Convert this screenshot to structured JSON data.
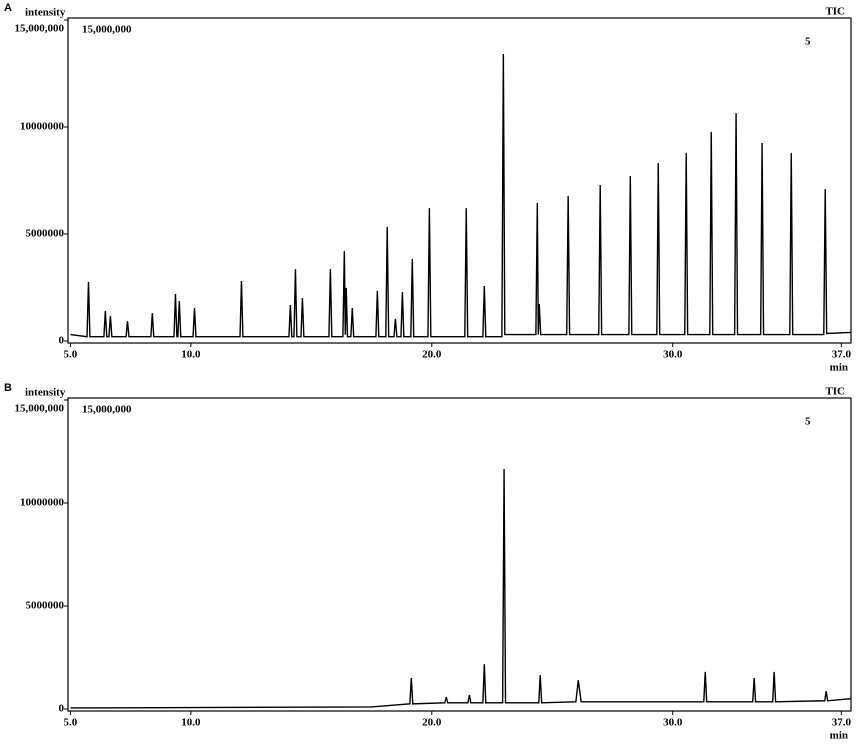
{
  "chart_data": [
    {
      "type": "line",
      "panel_label": "A",
      "ylabel": "intensity",
      "xlabel": "min",
      "trace_label": "TIC",
      "scale_label": "15,000,000",
      "sample_label": "5",
      "color": "#000000",
      "xlim": [
        4.9,
        37.4
      ],
      "ylim": [
        0,
        15000000
      ],
      "xticks": [
        {
          "value": 5,
          "label": "5.0"
        },
        {
          "value": 10,
          "label": "10.0"
        },
        {
          "value": 20,
          "label": "20.0"
        },
        {
          "value": 30,
          "label": "30.0"
        },
        {
          "value": 37,
          "label": "37.0"
        }
      ],
      "yticks": [
        0,
        5000000,
        10000000,
        {
          "value": 15000000,
          "label": "15,000,000"
        }
      ],
      "x": [
        5.0,
        5.69,
        5.75,
        5.81,
        6.39,
        6.45,
        6.51,
        6.6,
        6.66,
        6.72,
        7.31,
        7.37,
        7.43,
        8.34,
        8.4,
        8.46,
        9.3,
        9.36,
        9.42,
        9.46,
        9.52,
        9.58,
        10.09,
        10.15,
        10.21,
        12.04,
        12.1,
        12.16,
        14.07,
        14.13,
        14.19,
        14.28,
        14.34,
        14.4,
        14.57,
        14.63,
        14.69,
        15.73,
        15.79,
        15.85,
        16.31,
        16.37,
        16.41,
        16.45,
        16.5,
        16.64,
        16.7,
        16.76,
        17.68,
        17.74,
        17.8,
        18.09,
        18.15,
        18.21,
        18.43,
        18.49,
        18.55,
        18.72,
        18.78,
        18.84,
        19.13,
        19.19,
        19.25,
        19.84,
        19.9,
        19.96,
        21.37,
        21.43,
        21.49,
        22.12,
        22.18,
        22.24,
        22.91,
        22.97,
        23.03,
        24.32,
        24.38,
        24.42,
        24.46,
        24.52,
        25.6,
        25.66,
        25.72,
        26.93,
        26.99,
        27.05,
        28.18,
        28.24,
        28.3,
        29.34,
        29.4,
        29.46,
        30.5,
        30.56,
        30.62,
        31.54,
        31.6,
        31.66,
        32.57,
        32.63,
        32.69,
        33.65,
        33.71,
        33.77,
        34.86,
        34.92,
        34.98,
        36.27,
        36.33,
        36.39,
        37.4
      ],
      "values": [
        300000,
        200000,
        2760000,
        200000,
        200000,
        1400000,
        200000,
        200000,
        1170000,
        200000,
        200000,
        930000,
        200000,
        200000,
        1300000,
        200000,
        200000,
        2200000,
        200000,
        200000,
        1870000,
        200000,
        200000,
        1540000,
        200000,
        200000,
        2800000,
        200000,
        200000,
        1680000,
        200000,
        200000,
        3360000,
        200000,
        200000,
        2000000,
        200000,
        200000,
        3360000,
        200000,
        200000,
        4200000,
        300000,
        2480000,
        200000,
        200000,
        1540000,
        200000,
        200000,
        2340000,
        200000,
        200000,
        5330000,
        200000,
        200000,
        1030000,
        200000,
        200000,
        2290000,
        200000,
        200000,
        3830000,
        200000,
        200000,
        6210000,
        200000,
        200000,
        6210000,
        200000,
        200000,
        2570000,
        200000,
        200000,
        13410000,
        300000,
        300000,
        6450000,
        300000,
        1730000,
        300000,
        300000,
        6780000,
        300000,
        300000,
        7290000,
        300000,
        300000,
        7710000,
        300000,
        300000,
        8320000,
        300000,
        300000,
        8790000,
        300000,
        300000,
        9770000,
        300000,
        300000,
        10650000,
        300000,
        300000,
        9250000,
        300000,
        300000,
        8790000,
        300000,
        300000,
        7100000,
        350000,
        400000
      ]
    },
    {
      "type": "line",
      "panel_label": "B",
      "ylabel": "intensity",
      "xlabel": "min",
      "trace_label": "TIC",
      "scale_label": "15,000,000",
      "sample_label": "5",
      "color": "#000000",
      "xlim": [
        4.9,
        37.4
      ],
      "ylim": [
        0,
        15000000
      ],
      "xticks": [
        {
          "value": 5,
          "label": "5.0"
        },
        {
          "value": 10,
          "label": "10.0"
        },
        {
          "value": 20,
          "label": "20.0"
        },
        {
          "value": 30,
          "label": "30.0"
        },
        {
          "value": 37,
          "label": "37.0"
        }
      ],
      "yticks": [
        0,
        5000000,
        10000000,
        {
          "value": 15000000,
          "label": "15,000,000"
        }
      ],
      "x": [
        5.0,
        17.5,
        19.09,
        19.15,
        19.21,
        20.54,
        20.6,
        20.66,
        21.5,
        21.56,
        21.62,
        22.12,
        22.18,
        22.24,
        22.94,
        23.0,
        23.06,
        24.44,
        24.5,
        24.56,
        25.98,
        26.08,
        26.2,
        31.29,
        31.35,
        31.41,
        33.32,
        33.38,
        33.44,
        34.15,
        34.21,
        34.27,
        36.31,
        36.37,
        36.43,
        37.4
      ],
      "values": [
        50000,
        100000,
        250000,
        1500000,
        250000,
        300000,
        580000,
        300000,
        300000,
        680000,
        300000,
        300000,
        2180000,
        300000,
        300000,
        11650000,
        300000,
        300000,
        1650000,
        300000,
        350000,
        1400000,
        350000,
        350000,
        1800000,
        350000,
        350000,
        1500000,
        350000,
        350000,
        1800000,
        350000,
        400000,
        870000,
        400000,
        500000
      ]
    }
  ]
}
